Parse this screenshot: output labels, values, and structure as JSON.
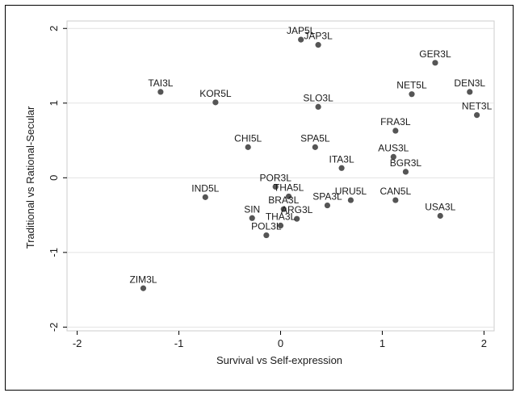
{
  "chart_data": {
    "type": "scatter",
    "xlabel": "Survival vs Self-expression",
    "ylabel": "Traditional vs Rational-Secular",
    "xlim": [
      -2.1,
      2.1
    ],
    "ylim": [
      -2.05,
      2.1
    ],
    "xticks": [
      -2,
      -1,
      0,
      1,
      2
    ],
    "yticks": [
      -2,
      -1,
      0,
      1,
      2
    ],
    "grid": "horizontal",
    "point_color": "#555555",
    "points": [
      {
        "label": "JAP5L",
        "x": 0.2,
        "y": 1.85
      },
      {
        "label": "JAP3L",
        "x": 0.37,
        "y": 1.78
      },
      {
        "label": "GER3L",
        "x": 1.52,
        "y": 1.54
      },
      {
        "label": "TAI3L",
        "x": -1.18,
        "y": 1.15
      },
      {
        "label": "DEN3L",
        "x": 1.86,
        "y": 1.15
      },
      {
        "label": "NET5L",
        "x": 1.29,
        "y": 1.12
      },
      {
        "label": "KOR5L",
        "x": -0.64,
        "y": 1.01
      },
      {
        "label": "SLO3L",
        "x": 0.37,
        "y": 0.95
      },
      {
        "label": "NET3L",
        "x": 1.93,
        "y": 0.84
      },
      {
        "label": "FRA3L",
        "x": 1.13,
        "y": 0.63
      },
      {
        "label": "CHI5L",
        "x": -0.32,
        "y": 0.41
      },
      {
        "label": "SPA5L",
        "x": 0.34,
        "y": 0.41
      },
      {
        "label": "AUS3L",
        "x": 1.11,
        "y": 0.28
      },
      {
        "label": "ITA3L",
        "x": 0.6,
        "y": 0.13
      },
      {
        "label": "BGR3L",
        "x": 1.23,
        "y": 0.08
      },
      {
        "label": "POR3L",
        "x": -0.05,
        "y": -0.12
      },
      {
        "label": "IND5L",
        "x": -0.74,
        "y": -0.26
      },
      {
        "label": "THA5L",
        "x": 0.08,
        "y": -0.25
      },
      {
        "label": "URU5L",
        "x": 0.69,
        "y": -0.3
      },
      {
        "label": "CAN5L",
        "x": 1.13,
        "y": -0.3
      },
      {
        "label": "SPA3L",
        "x": 0.46,
        "y": -0.37
      },
      {
        "label": "BRA3L",
        "x": 0.03,
        "y": -0.42
      },
      {
        "label": "ARG3L",
        "x": 0.16,
        "y": -0.55
      },
      {
        "label": "USA3L",
        "x": 1.57,
        "y": -0.51
      },
      {
        "label": "SIN",
        "x": -0.28,
        "y": -0.54
      },
      {
        "label": "THA3L",
        "x": 0.0,
        "y": -0.64
      },
      {
        "label": "POL3L",
        "x": -0.14,
        "y": -0.77
      },
      {
        "label": "ZIM3L",
        "x": -1.35,
        "y": -1.48
      }
    ]
  }
}
